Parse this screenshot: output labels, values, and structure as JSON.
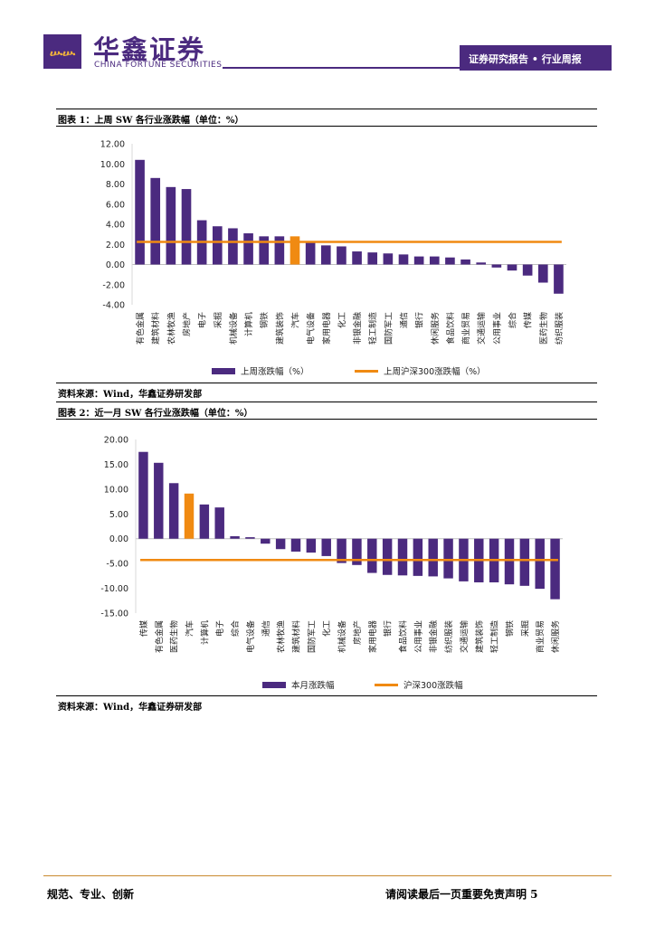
{
  "header": {
    "brand_cn": "华鑫证券",
    "brand_en": "CHINA FORTUNE SECURITIES",
    "banner": "证券研究报告 • 行业周报",
    "logo_color": "#4b2a7f"
  },
  "figure1": {
    "title": "图表 1：上周 SW 各行业涨跌幅（单位：%）",
    "source": "资料来源：Wind，华鑫证券研发部"
  },
  "figure2": {
    "title": "图表 2：近一月 SW 各行业涨跌幅（单位：%）",
    "source": "资料来源：Wind，华鑫证券研发部"
  },
  "footer": {
    "left": "规范、专业、创新",
    "right": "请阅读最后一页重要免责声明 5"
  },
  "chart_data": [
    {
      "type": "bar",
      "categories": [
        "有色金属",
        "建筑材料",
        "农林牧渔",
        "房地产",
        "电子",
        "采掘",
        "机械设备",
        "计算机",
        "钢铁",
        "建筑装饰",
        "汽车",
        "电气设备",
        "家用电器",
        "化工",
        "非银金融",
        "轻工制造",
        "国防军工",
        "通信",
        "银行",
        "休闲服务",
        "食品饮料",
        "商业贸易",
        "交通运输",
        "公用事业",
        "综合",
        "传媒",
        "医药生物",
        "纺织服装"
      ],
      "values": [
        10.4,
        8.6,
        7.7,
        7.5,
        4.4,
        3.8,
        3.6,
        3.1,
        2.8,
        2.8,
        2.8,
        2.2,
        1.9,
        1.8,
        1.3,
        1.2,
        1.1,
        1.0,
        0.8,
        0.8,
        0.7,
        0.5,
        0.2,
        -0.3,
        -0.6,
        -1.1,
        -1.8,
        -2.9
      ],
      "highlight_category": "汽车",
      "reference_line": 2.25,
      "ylim": [
        -4,
        12
      ],
      "yticks": [
        "12.00",
        "10.00",
        "8.00",
        "6.00",
        "4.00",
        "2.00",
        "0.00",
        "-2.00",
        "-4.00"
      ],
      "legend": [
        "上周涨跌幅（%）",
        "上周沪深300涨跌幅（%）"
      ],
      "bar_color": "#4b2a7f",
      "highlight_color": "#f08a12",
      "line_color": "#f08a12"
    },
    {
      "type": "bar",
      "categories": [
        "传媒",
        "有色金属",
        "医药生物",
        "汽车",
        "计算机",
        "电子",
        "综合",
        "电气设备",
        "通信",
        "农林牧渔",
        "建筑材料",
        "国防军工",
        "化工",
        "机械设备",
        "房地产",
        "家用电器",
        "银行",
        "食品饮料",
        "公用事业",
        "非银金融",
        "纺织服装",
        "交通运输",
        "建筑装饰",
        "轻工制造",
        "钢铁",
        "采掘",
        "商业贸易",
        "休闲服务"
      ],
      "values": [
        17.5,
        15.3,
        11.2,
        9.1,
        6.9,
        6.3,
        0.5,
        0.3,
        -1.0,
        -2.1,
        -2.6,
        -2.8,
        -3.5,
        -4.9,
        -5.3,
        -6.9,
        -7.3,
        -7.4,
        -7.5,
        -7.6,
        -8.0,
        -8.6,
        -8.8,
        -8.8,
        -9.2,
        -9.5,
        -10.1,
        -12.2
      ],
      "highlight_category": "汽车",
      "reference_line": -4.3,
      "ylim": [
        -15,
        20
      ],
      "yticks": [
        "20.00",
        "15.00",
        "10.00",
        "5.00",
        "0.00",
        "-5.00",
        "-10.00",
        "-15.00"
      ],
      "legend": [
        "本月涨跌幅",
        "沪深300涨跌幅"
      ],
      "bar_color": "#4b2a7f",
      "highlight_color": "#f08a12",
      "line_color": "#f08a12"
    }
  ]
}
